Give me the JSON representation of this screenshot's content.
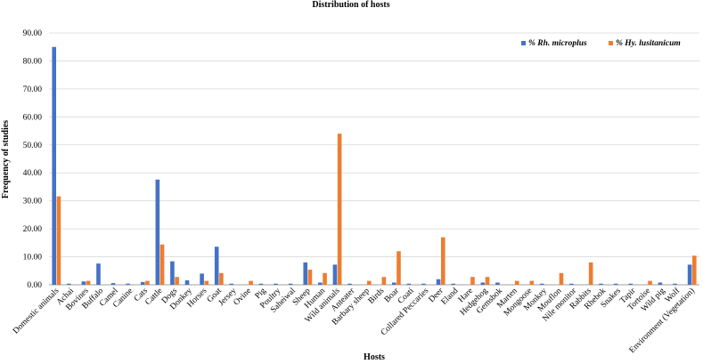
{
  "chart_data": {
    "type": "bar",
    "title": "Distribution of hosts",
    "xlabel": "Hosts",
    "ylabel": "Frequency of studies",
    "ylim": [
      0,
      90
    ],
    "yticks": [
      "0.00",
      "10.00",
      "20.00",
      "30.00",
      "40.00",
      "50.00",
      "60.00",
      "70.00",
      "80.00",
      "90.00"
    ],
    "grid": true,
    "legend_position": "top-right",
    "categories": [
      "Domestic animals",
      "Achai",
      "Bovines",
      "Buffalo",
      "Camel",
      "Canine",
      "Cats",
      "Cattle",
      "Dogs",
      "Donkey",
      "Horses",
      "Goat",
      "Jersey",
      "Ovine",
      "Pig",
      "Poultry",
      "Saheiwal",
      "Sheep",
      "Human",
      "Wild animals",
      "Anteater",
      "Barbary sheep",
      "Birds",
      "Boar",
      "Coati",
      "Collared Peccaries",
      "Deer",
      "Eland",
      "Hare",
      "Hedgehog",
      "Gemsbok",
      "Marten",
      "Mongoose",
      "Monkey",
      "Mouflon",
      "Nile monitor",
      "Rabbits",
      "Rhebok",
      "Snakes",
      "Tapir",
      "Tortoise",
      "Wild pig",
      "Wolf",
      "Environment (Vegetation)"
    ],
    "series": [
      {
        "name": "%  Rh. microplus",
        "color": "#4472c4",
        "values": [
          85.0,
          0.4,
          1.2,
          7.6,
          0.6,
          0.4,
          1.0,
          37.6,
          8.4,
          1.6,
          4.0,
          13.6,
          0.4,
          0.0,
          0.4,
          0.4,
          0.4,
          8.0,
          0.8,
          7.2,
          0.4,
          0.0,
          0.0,
          0.8,
          0.4,
          0.4,
          2.0,
          0.4,
          0.0,
          0.8,
          0.8,
          0.0,
          0.0,
          0.4,
          0.0,
          0.4,
          0.0,
          0.4,
          0.4,
          0.4,
          0.0,
          0.8,
          0.4,
          7.2
        ]
      },
      {
        "name": "% Hy. lusitanicum",
        "color": "#ed7d31",
        "values": [
          31.6,
          0.0,
          1.4,
          0.0,
          0.0,
          0.0,
          1.4,
          14.4,
          2.8,
          0.0,
          1.4,
          4.2,
          0.0,
          1.4,
          0.0,
          0.0,
          0.0,
          5.4,
          4.2,
          54.0,
          0.0,
          1.4,
          2.8,
          12.0,
          0.0,
          0.0,
          17.0,
          0.0,
          2.8,
          2.8,
          0.0,
          1.4,
          1.4,
          0.0,
          4.2,
          0.0,
          8.0,
          0.0,
          0.0,
          0.0,
          1.4,
          0.0,
          0.0,
          10.4
        ]
      }
    ]
  }
}
